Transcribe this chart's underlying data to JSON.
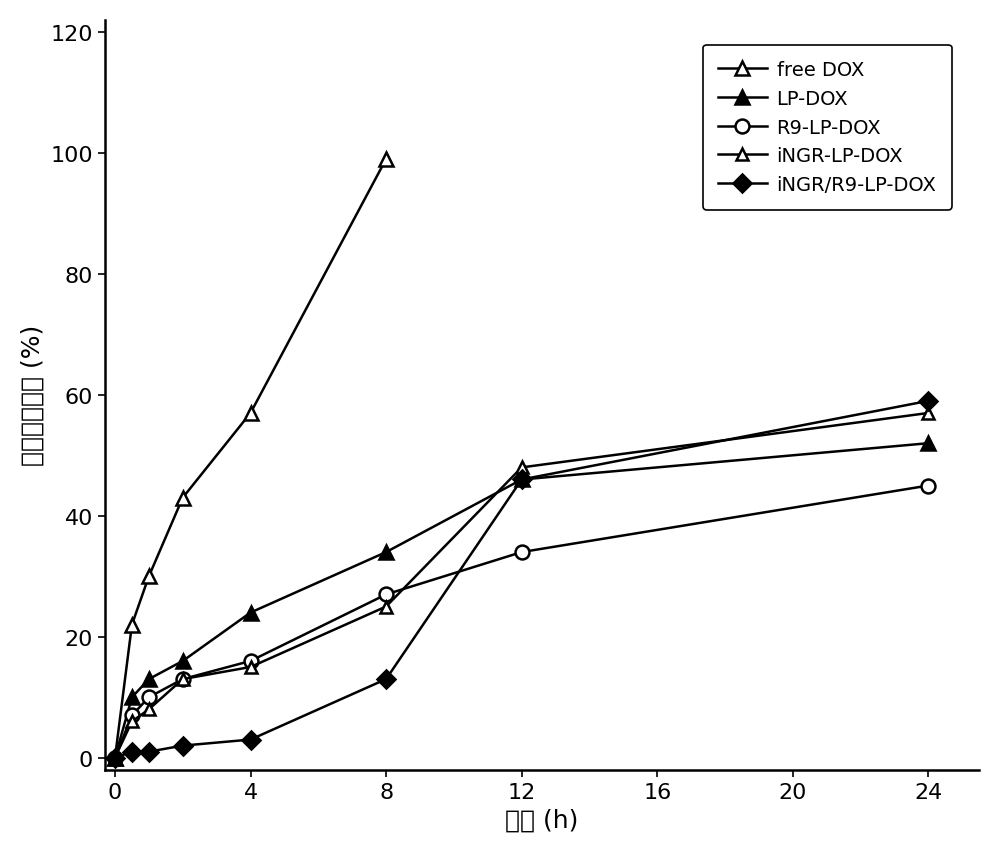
{
  "series": [
    {
      "label": "free DOX",
      "x": [
        0,
        0.5,
        1,
        2,
        4,
        8
      ],
      "y": [
        0,
        22,
        30,
        43,
        57,
        99
      ],
      "marker": "^",
      "fillstyle": "none",
      "color": "#000000",
      "linewidth": 1.8,
      "markersize": 10
    },
    {
      "label": "LP-DOX",
      "x": [
        0,
        0.5,
        1,
        2,
        4,
        8,
        12,
        24
      ],
      "y": [
        0,
        10,
        13,
        16,
        24,
        34,
        46,
        52
      ],
      "marker": "^",
      "fillstyle": "full",
      "color": "#000000",
      "linewidth": 1.8,
      "markersize": 10
    },
    {
      "label": "R9-LP-DOX",
      "x": [
        0,
        0.5,
        1,
        2,
        4,
        8,
        12,
        24
      ],
      "y": [
        0,
        7,
        10,
        13,
        16,
        27,
        34,
        45
      ],
      "marker": "o",
      "fillstyle": "none",
      "color": "#000000",
      "linewidth": 1.8,
      "markersize": 10
    },
    {
      "label": "iNGR-LP-DOX",
      "x": [
        0,
        0.5,
        1,
        2,
        4,
        8,
        12,
        24
      ],
      "y": [
        0,
        6,
        8,
        13,
        15,
        25,
        48,
        57
      ],
      "marker": "^",
      "fillstyle": "none",
      "color": "#000000",
      "linewidth": 1.8,
      "markersize": 8
    },
    {
      "label": "iNGR/R9-LP-DOX",
      "x": [
        0,
        0.5,
        1,
        2,
        4,
        8,
        12,
        24
      ],
      "y": [
        0,
        1,
        1,
        2,
        3,
        13,
        46,
        59
      ],
      "marker": "D",
      "fillstyle": "full",
      "color": "#000000",
      "linewidth": 1.8,
      "markersize": 9
    }
  ],
  "xlabel": "时间 (h)",
  "ylabel": "累积药物释放 (%)",
  "xlim": [
    -0.3,
    25.5
  ],
  "ylim": [
    -2,
    122
  ],
  "xticks": [
    0,
    4,
    8,
    12,
    16,
    20,
    24
  ],
  "yticks": [
    0,
    20,
    40,
    60,
    80,
    100,
    120
  ],
  "label_fontsize": 18,
  "tick_fontsize": 16,
  "legend_fontsize": 14,
  "background_color": "#ffffff",
  "figure_width": 10.0,
  "figure_height": 8.53
}
